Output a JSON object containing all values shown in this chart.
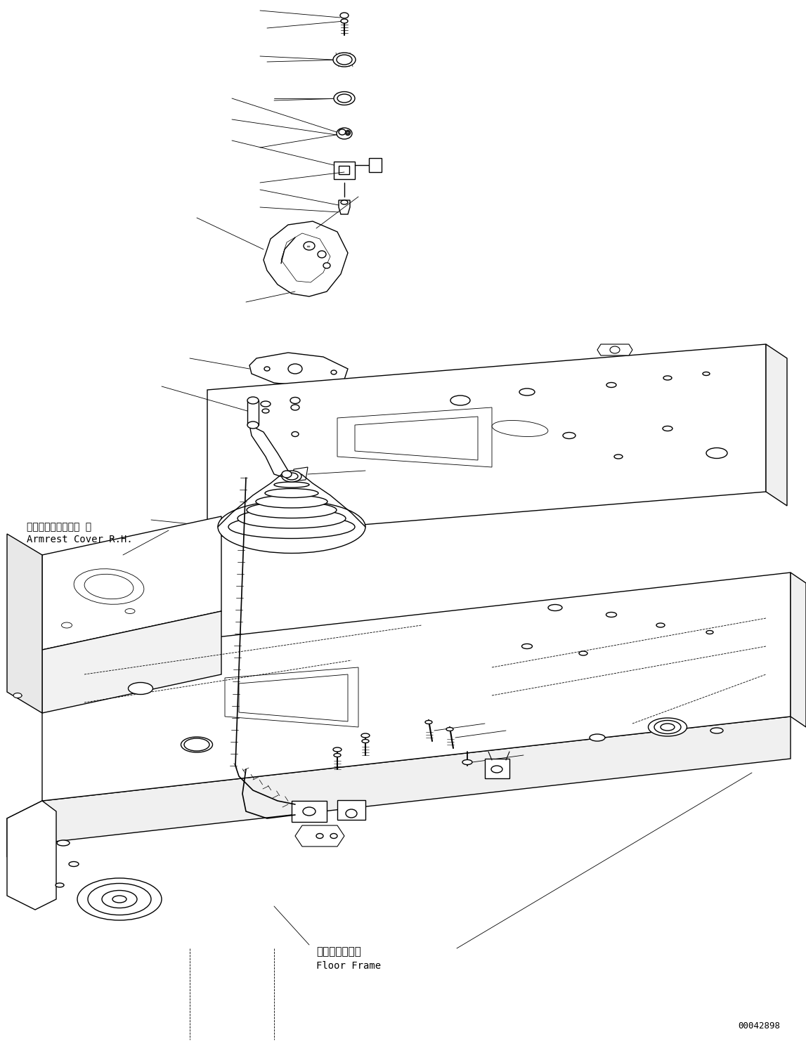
{
  "figure_width": 11.47,
  "figure_height": 14.89,
  "dpi": 100,
  "bg_color": "#ffffff",
  "line_color": "#000000",
  "label_armrest_jp": "アームレストカバー 右",
  "label_armrest_en": "Armrest Cover R.H.",
  "label_floor_jp": "フロアフレーム",
  "label_floor_en": "Floor Frame",
  "label_id": "00042898",
  "text_color": "#000000",
  "font_size_label": 10,
  "font_size_id": 9
}
